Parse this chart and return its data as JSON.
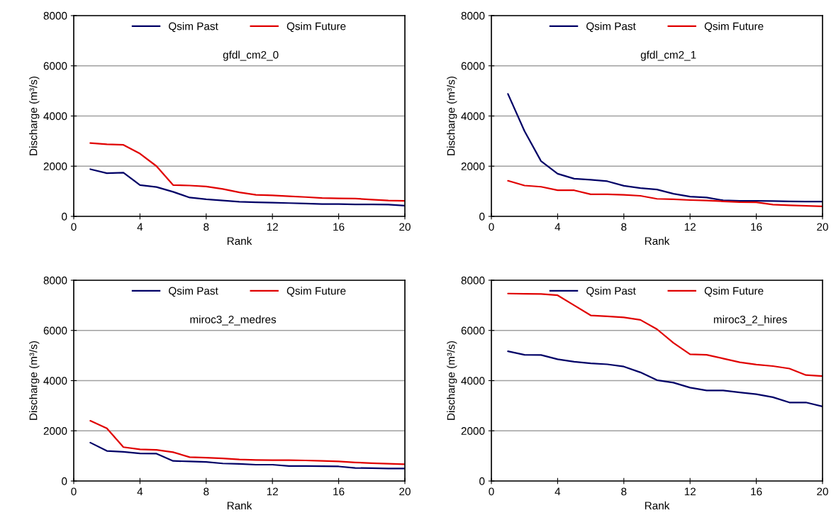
{
  "chart_data": [
    {
      "type": "line",
      "annotations": [
        "gfdl_cm2_0"
      ],
      "xlabel": "Rank",
      "ylabel": "Discharge (m³/s)",
      "x": [
        1,
        2,
        3,
        4,
        5,
        6,
        7,
        8,
        9,
        10,
        11,
        12,
        13,
        14,
        15,
        16,
        17,
        18,
        19,
        20
      ],
      "xlim": [
        0,
        20
      ],
      "xticks": [
        0,
        4,
        8,
        12,
        16,
        20
      ],
      "ylim": [
        0,
        8000
      ],
      "yticks": [
        0,
        2000,
        4000,
        6000,
        8000
      ],
      "grid": "y",
      "legend": "top",
      "marker": "none",
      "line_style": "solid",
      "series": [
        {
          "name": "Qsim Past",
          "color": "#000066",
          "values": [
            1880,
            1720,
            1740,
            1250,
            1170,
            980,
            750,
            680,
            630,
            580,
            560,
            550,
            530,
            510,
            490,
            490,
            480,
            480,
            470,
            430
          ]
        },
        {
          "name": "Qsim Future",
          "color": "#e00000",
          "values": [
            2920,
            2870,
            2850,
            2500,
            2000,
            1250,
            1230,
            1190,
            1090,
            960,
            860,
            840,
            800,
            770,
            730,
            720,
            710,
            670,
            630,
            620
          ]
        }
      ]
    },
    {
      "type": "line",
      "annotations": [
        "gfdl_cm2_1"
      ],
      "xlabel": "Rank",
      "ylabel": "Discharge (m³/s)",
      "x": [
        1,
        2,
        3,
        4,
        5,
        6,
        7,
        8,
        9,
        10,
        11,
        12,
        13,
        14,
        15,
        16,
        17,
        18,
        19,
        20
      ],
      "xlim": [
        0,
        20
      ],
      "xticks": [
        0,
        4,
        8,
        12,
        16,
        20
      ],
      "ylim": [
        0,
        8000
      ],
      "yticks": [
        0,
        2000,
        4000,
        6000,
        8000
      ],
      "grid": "y",
      "legend": "top",
      "marker": "none",
      "line_style": "solid",
      "series": [
        {
          "name": "Qsim Past",
          "color": "#000066",
          "values": [
            4880,
            3400,
            2200,
            1700,
            1500,
            1460,
            1400,
            1220,
            1130,
            1070,
            900,
            790,
            750,
            640,
            620,
            620,
            610,
            600,
            590,
            590
          ]
        },
        {
          "name": "Qsim Future",
          "color": "#e00000",
          "values": [
            1420,
            1230,
            1180,
            1040,
            1040,
            880,
            880,
            860,
            820,
            700,
            680,
            650,
            630,
            600,
            570,
            560,
            470,
            440,
            420,
            400
          ]
        }
      ]
    },
    {
      "type": "line",
      "annotations": [
        "miroc3_2_medres"
      ],
      "xlabel": "Rank",
      "ylabel": "Discharge (m³/s)",
      "x": [
        1,
        2,
        3,
        4,
        5,
        6,
        7,
        8,
        9,
        10,
        11,
        12,
        13,
        14,
        15,
        16,
        17,
        18,
        19,
        20
      ],
      "xlim": [
        0,
        20
      ],
      "xticks": [
        0,
        4,
        8,
        12,
        16,
        20
      ],
      "ylim": [
        0,
        8000
      ],
      "yticks": [
        0,
        2000,
        4000,
        6000,
        8000
      ],
      "grid": "y",
      "legend": "top",
      "marker": "none",
      "line_style": "solid",
      "series": [
        {
          "name": "Qsim Past",
          "color": "#000066",
          "values": [
            1530,
            1200,
            1160,
            1100,
            1090,
            800,
            780,
            760,
            700,
            680,
            650,
            650,
            600,
            600,
            590,
            580,
            520,
            510,
            500,
            500
          ]
        },
        {
          "name": "Qsim Future",
          "color": "#e00000",
          "values": [
            2400,
            2100,
            1350,
            1260,
            1240,
            1150,
            950,
            930,
            900,
            860,
            840,
            830,
            830,
            820,
            800,
            780,
            740,
            710,
            690,
            670
          ]
        }
      ]
    },
    {
      "type": "line",
      "annotations": [
        "miroc3_2_hires"
      ],
      "xlabel": "Rank",
      "ylabel": "Discharge (m³/s)",
      "x": [
        1,
        2,
        3,
        4,
        5,
        6,
        7,
        8,
        9,
        10,
        11,
        12,
        13,
        14,
        15,
        16,
        17,
        18,
        19,
        20
      ],
      "xlim": [
        0,
        20
      ],
      "xticks": [
        0,
        4,
        8,
        12,
        16,
        20
      ],
      "ylim": [
        0,
        8000
      ],
      "yticks": [
        0,
        2000,
        4000,
        6000,
        8000
      ],
      "grid": "y",
      "legend": "top",
      "marker": "none",
      "line_style": "solid",
      "series": [
        {
          "name": "Qsim Past",
          "color": "#000066",
          "values": [
            5170,
            5030,
            5020,
            4850,
            4750,
            4690,
            4650,
            4560,
            4330,
            4020,
            3920,
            3720,
            3610,
            3610,
            3530,
            3460,
            3340,
            3130,
            3130,
            2970
          ]
        },
        {
          "name": "Qsim Future",
          "color": "#e00000",
          "values": [
            7470,
            7460,
            7450,
            7400,
            7000,
            6600,
            6560,
            6520,
            6420,
            6050,
            5500,
            5050,
            5030,
            4880,
            4730,
            4640,
            4580,
            4480,
            4220,
            4180
          ]
        }
      ]
    }
  ]
}
